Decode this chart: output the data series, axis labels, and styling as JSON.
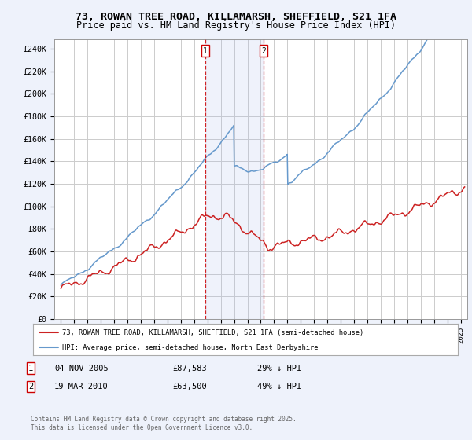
{
  "title": "73, ROWAN TREE ROAD, KILLAMARSH, SHEFFIELD, S21 1FA",
  "subtitle": "Price paid vs. HM Land Registry's House Price Index (HPI)",
  "ylabel_ticks": [
    "£0",
    "£20K",
    "£40K",
    "£60K",
    "£80K",
    "£100K",
    "£120K",
    "£140K",
    "£160K",
    "£180K",
    "£200K",
    "£220K",
    "£240K"
  ],
  "ytick_values": [
    0,
    20000,
    40000,
    60000,
    80000,
    100000,
    120000,
    140000,
    160000,
    180000,
    200000,
    220000,
    240000
  ],
  "ylim": [
    0,
    248000
  ],
  "xlim_start": 1994.5,
  "xlim_end": 2025.5,
  "background_color": "#eef2fb",
  "plot_bg_color": "#ffffff",
  "grid_color": "#cccccc",
  "hpi_color": "#6699cc",
  "price_color": "#cc2222",
  "vline_color": "#cc0000",
  "marker1_x": 2005.84,
  "marker2_x": 2010.21,
  "legend_line1": "73, ROWAN TREE ROAD, KILLAMARSH, SHEFFIELD, S21 1FA (semi-detached house)",
  "legend_line2": "HPI: Average price, semi-detached house, North East Derbyshire",
  "footer": "Contains HM Land Registry data © Crown copyright and database right 2025.\nThis data is licensed under the Open Government Licence v3.0."
}
